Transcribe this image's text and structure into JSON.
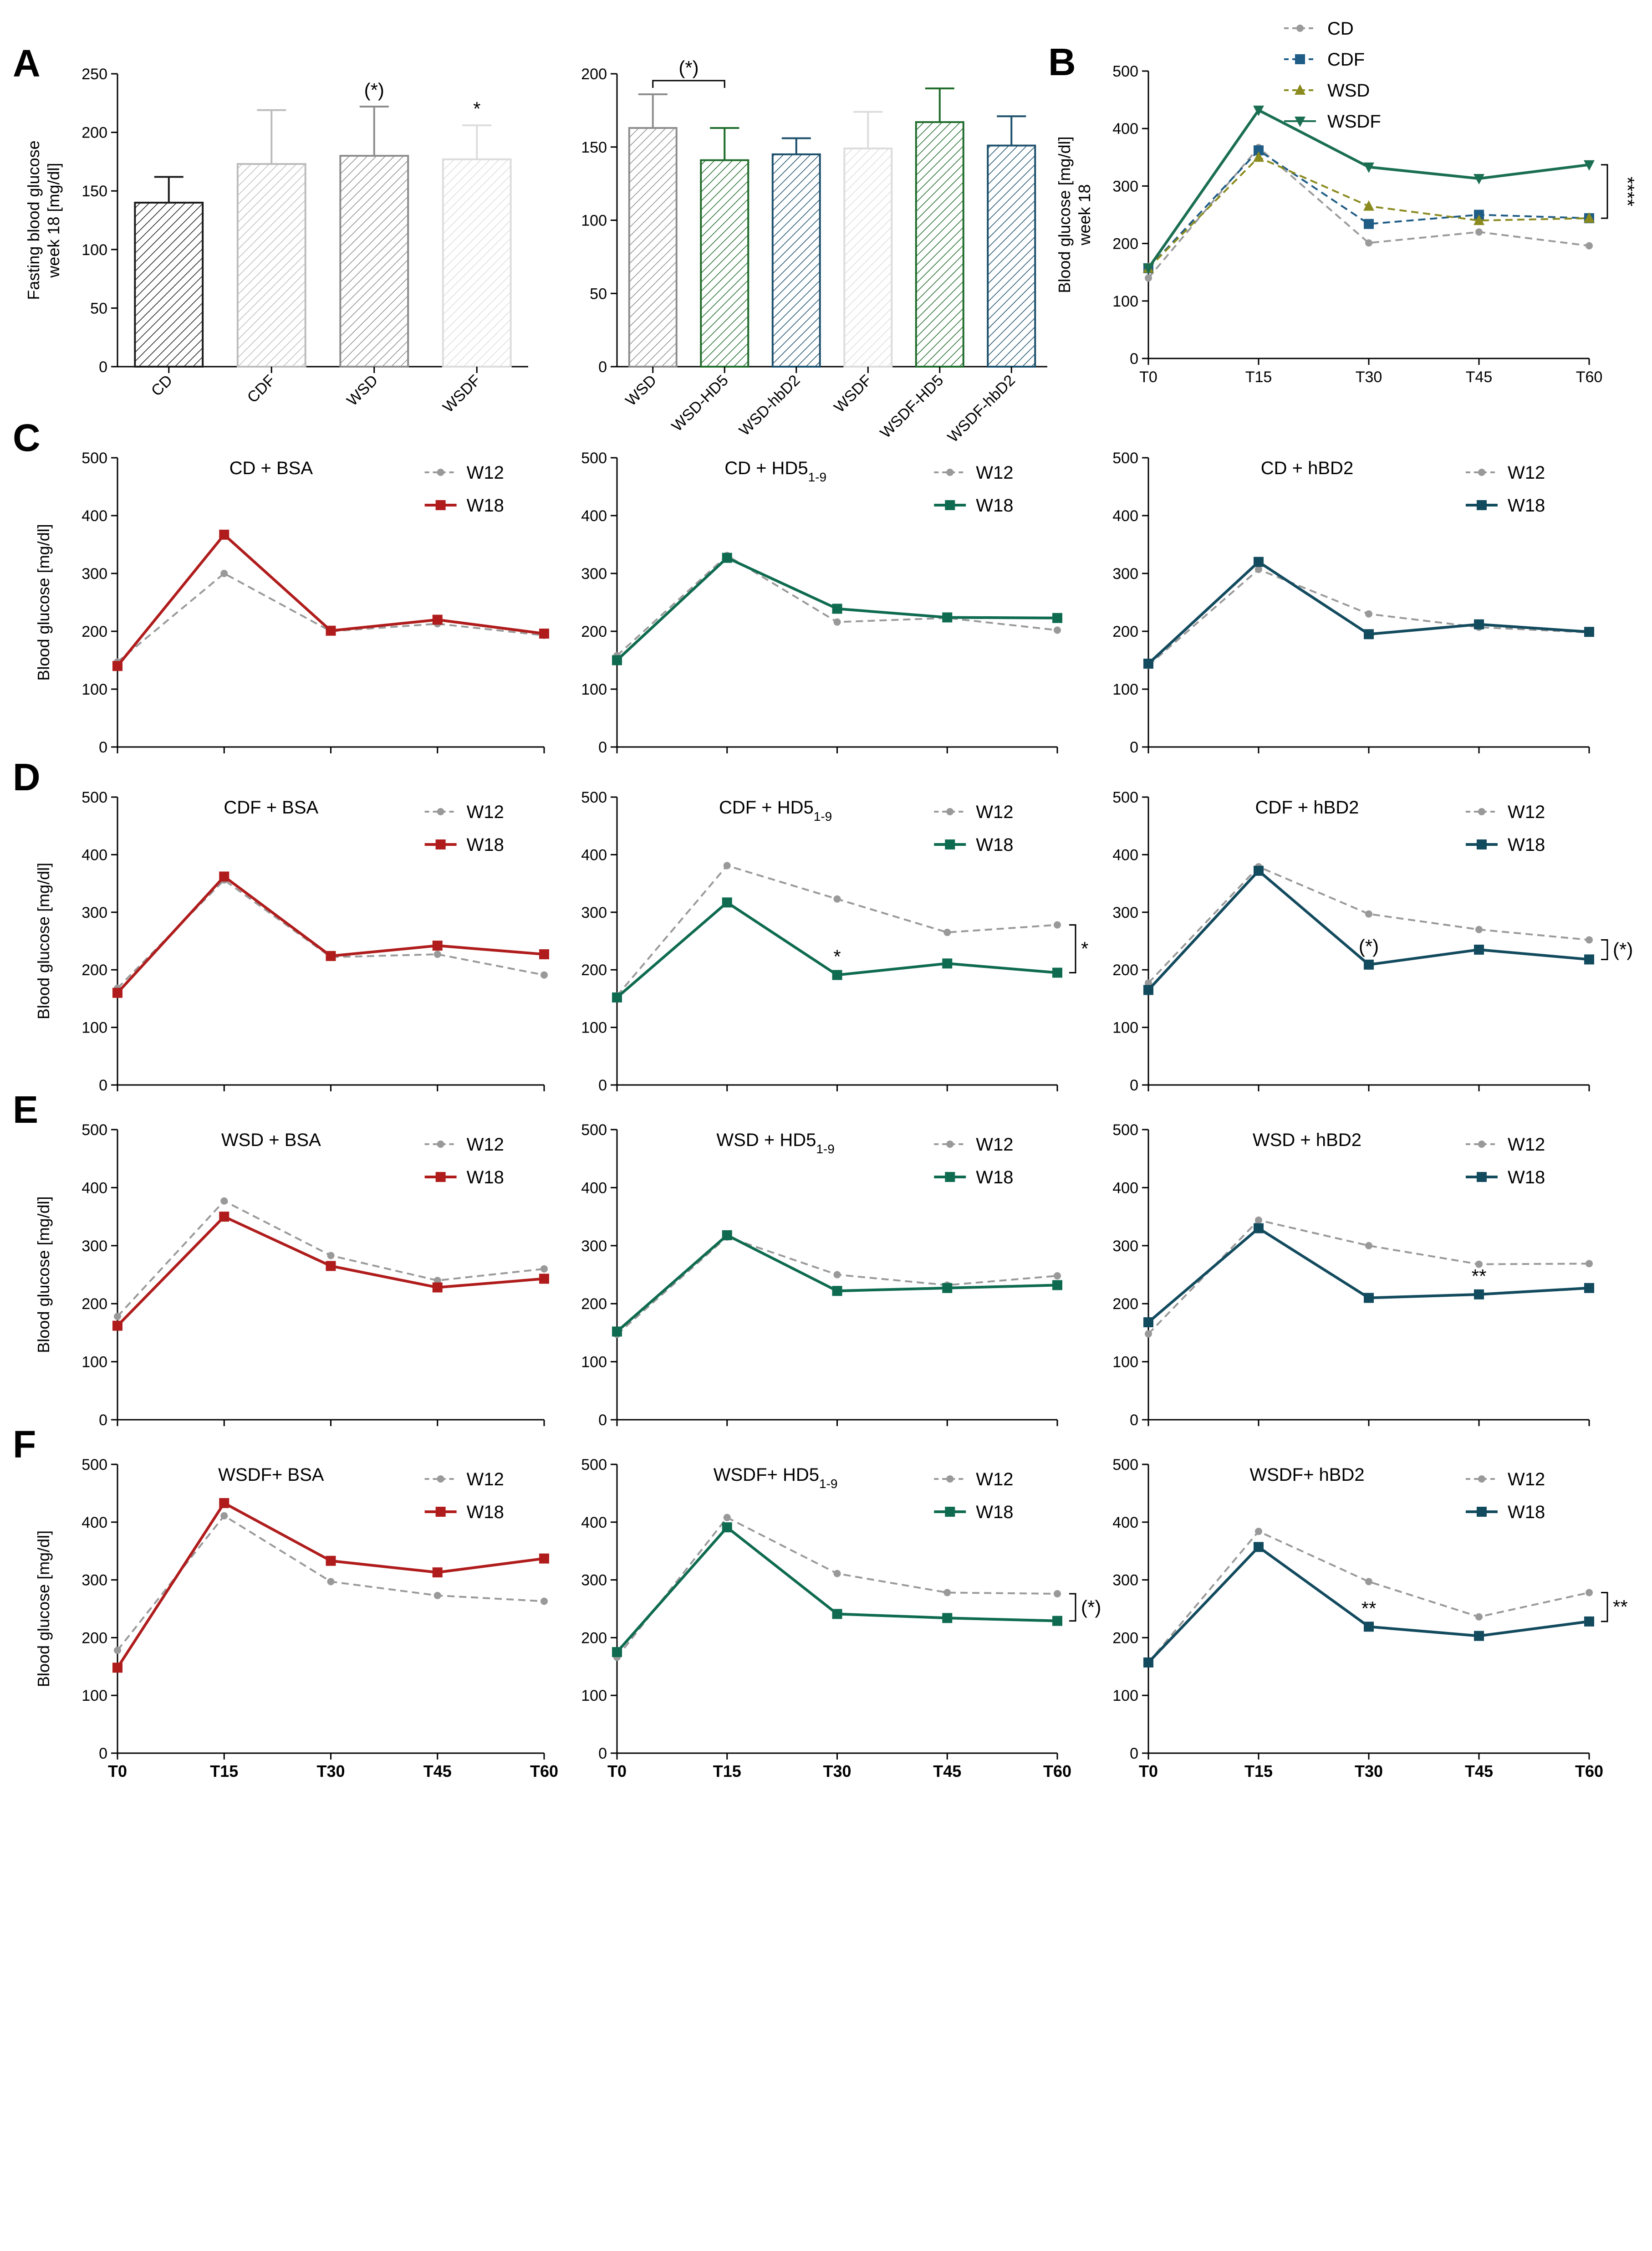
{
  "colors": {
    "CD": "#1a1a1a",
    "CDF": "#bcbcbc",
    "WSD": "#8c8c8c",
    "WSDF": "#dcdcdc",
    "HD5": "#1f6b2a",
    "hBD2": "#1b4f6b",
    "W12": "#999999",
    "W18_BSA": "#b01c1c",
    "W18_HD5": "#0e6b50",
    "W18_hBD2": "#124a5e",
    "B_CD": "#9a9a9a",
    "B_CDF": "#1f5c86",
    "B_WSD": "#8a8a1e",
    "B_WSDF": "#1a6e52"
  },
  "chart_data": [
    {
      "id": "A1",
      "type": "bar",
      "panel_label": "A",
      "ylabel_lines": [
        "Fasting blood glucose",
        "week 18 [mg/dl]"
      ],
      "ylim": [
        0,
        250
      ],
      "yticks": [
        0,
        50,
        100,
        150,
        200,
        250
      ],
      "categories": [
        "CD",
        "CDF",
        "WSD",
        "WSDF"
      ],
      "values": [
        140,
        173,
        180,
        177
      ],
      "errors": [
        22,
        46,
        42,
        29
      ],
      "bar_colors": [
        "CD",
        "CDF",
        "WSD",
        "WSDF"
      ],
      "annotations": [
        {
          "category": "WSD",
          "text": "(*)"
        },
        {
          "category": "WSDF",
          "text": "*"
        }
      ]
    },
    {
      "id": "A2",
      "type": "bar",
      "ylim": [
        0,
        200
      ],
      "yticks": [
        0,
        50,
        100,
        150,
        200
      ],
      "categories": [
        "WSD",
        "WSD-HD5",
        "WSD-hbD2",
        "WSDF",
        "WSDF-HD5",
        "WSDF-hbD2"
      ],
      "values": [
        163,
        141,
        145,
        149,
        167,
        151
      ],
      "errors": [
        23,
        22,
        11,
        25,
        23,
        20
      ],
      "bar_colors": [
        "WSD",
        "HD5",
        "hBD2",
        "WSDF",
        "HD5",
        "hBD2"
      ],
      "brackets": [
        {
          "from": "WSD",
          "to": "WSD-HD5",
          "text": "(*)"
        }
      ]
    },
    {
      "id": "B",
      "type": "line",
      "panel_label": "B",
      "ylabel_lines": [
        "Blood glucose [mg/dl]",
        "week 18"
      ],
      "ylim": [
        0,
        500
      ],
      "yticks": [
        0,
        100,
        200,
        300,
        400,
        500
      ],
      "x": [
        "T0",
        "T15",
        "T30",
        "T45",
        "T60"
      ],
      "series": [
        {
          "name": "CD",
          "values": [
            140,
            367,
            201,
            220,
            196
          ],
          "color": "B_CD",
          "dash": true,
          "marker": "circle"
        },
        {
          "name": "CDF",
          "values": [
            157,
            362,
            234,
            250,
            244
          ],
          "color": "B_CDF",
          "dash": true,
          "marker": "square"
        },
        {
          "name": "WSD",
          "values": [
            157,
            350,
            265,
            240,
            244
          ],
          "color": "B_WSD",
          "dash": true,
          "marker": "triangle"
        },
        {
          "name": "WSDF",
          "values": [
            157,
            432,
            333,
            313,
            337
          ],
          "color": "B_WSDF",
          "dash": false,
          "marker": "triangle-down"
        }
      ],
      "significance": {
        "text": "****",
        "from": 244,
        "to": 337
      }
    },
    {
      "id": "C1",
      "type": "line",
      "panel_label": "C",
      "title": "CD + BSA",
      "treatment": "BSA",
      "ylabel_lines": [
        "Blood glucose [mg/dl]"
      ],
      "ylim": [
        0,
        500
      ],
      "yticks": [
        0,
        100,
        200,
        300,
        400,
        500
      ],
      "x": [
        "T0",
        "T15",
        "T30",
        "T45",
        "T60"
      ],
      "series": [
        {
          "name": "W12",
          "values": [
            147,
            300,
            200,
            213,
            193
          ]
        },
        {
          "name": "W18",
          "values": [
            140,
            367,
            201,
            220,
            196
          ]
        }
      ]
    },
    {
      "id": "C2",
      "type": "line",
      "title_main": "CD + HD5",
      "title_sub": "1-9",
      "treatment": "HD5",
      "ylim": [
        0,
        500
      ],
      "yticks": [
        0,
        100,
        200,
        300,
        400,
        500
      ],
      "x": [
        "T0",
        "T15",
        "T30",
        "T45",
        "T60"
      ],
      "series": [
        {
          "name": "W12",
          "values": [
            158,
            331,
            216,
            223,
            202
          ]
        },
        {
          "name": "W18",
          "values": [
            150,
            327,
            239,
            224,
            223
          ]
        }
      ]
    },
    {
      "id": "C3",
      "type": "line",
      "title": "CD + hBD2",
      "treatment": "hBD2",
      "ylim": [
        0,
        500
      ],
      "yticks": [
        0,
        100,
        200,
        300,
        400,
        500
      ],
      "x": [
        "T0",
        "T15",
        "T30",
        "T45",
        "T60"
      ],
      "series": [
        {
          "name": "W12",
          "values": [
            141,
            307,
            230,
            207,
            198
          ]
        },
        {
          "name": "W18",
          "values": [
            144,
            320,
            195,
            212,
            199
          ]
        }
      ]
    },
    {
      "id": "D1",
      "type": "line",
      "panel_label": "D",
      "title": "CDF + BSA",
      "treatment": "BSA",
      "ylabel_lines": [
        "Blood glucose [mg/dl]"
      ],
      "ylim": [
        0,
        500
      ],
      "yticks": [
        0,
        100,
        200,
        300,
        400,
        500
      ],
      "x": [
        "T0",
        "T15",
        "T30",
        "T45",
        "T60"
      ],
      "series": [
        {
          "name": "W12",
          "values": [
            168,
            356,
            222,
            227,
            191
          ]
        },
        {
          "name": "W18",
          "values": [
            160,
            362,
            224,
            242,
            227
          ]
        }
      ]
    },
    {
      "id": "D2",
      "type": "line",
      "title_main": "CDF + HD5",
      "title_sub": "1-9",
      "treatment": "HD5",
      "ylim": [
        0,
        500
      ],
      "yticks": [
        0,
        100,
        200,
        300,
        400,
        500
      ],
      "x": [
        "T0",
        "T15",
        "T30",
        "T45",
        "T60"
      ],
      "series": [
        {
          "name": "W12",
          "values": [
            155,
            381,
            323,
            265,
            278
          ]
        },
        {
          "name": "W18",
          "values": [
            152,
            317,
            191,
            211,
            195
          ]
        }
      ],
      "point_annotations": [
        {
          "x": "T30",
          "value": 191,
          "text": "*"
        }
      ],
      "significance": {
        "text": "*",
        "from": 195,
        "to": 278
      }
    },
    {
      "id": "D3",
      "type": "line",
      "title": "CDF + hBD2",
      "treatment": "hBD2",
      "ylim": [
        0,
        500
      ],
      "yticks": [
        0,
        100,
        200,
        300,
        400,
        500
      ],
      "x": [
        "T0",
        "T15",
        "T30",
        "T45",
        "T60"
      ],
      "series": [
        {
          "name": "W12",
          "values": [
            177,
            379,
            297,
            270,
            252
          ]
        },
        {
          "name": "W18",
          "values": [
            165,
            372,
            209,
            235,
            218
          ]
        }
      ],
      "point_annotations": [
        {
          "x": "T30",
          "value": 209,
          "text": "(*)"
        }
      ],
      "significance": {
        "text": "(*)",
        "from": 218,
        "to": 252
      }
    },
    {
      "id": "E1",
      "type": "line",
      "panel_label": "E",
      "title": "WSD + BSA",
      "treatment": "BSA",
      "ylabel_lines": [
        "Blood glucose [mg/dl]"
      ],
      "ylim": [
        0,
        500
      ],
      "yticks": [
        0,
        100,
        200,
        300,
        400,
        500
      ],
      "x": [
        "T0",
        "T15",
        "T30",
        "T45",
        "T60"
      ],
      "series": [
        {
          "name": "W12",
          "values": [
            178,
            377,
            283,
            240,
            260
          ]
        },
        {
          "name": "W18",
          "values": [
            162,
            350,
            265,
            228,
            243
          ]
        }
      ]
    },
    {
      "id": "E2",
      "type": "line",
      "title_main": "WSD + HD5",
      "title_sub": "1-9",
      "treatment": "HD5",
      "ylim": [
        0,
        500
      ],
      "yticks": [
        0,
        100,
        200,
        300,
        400,
        500
      ],
      "x": [
        "T0",
        "T15",
        "T30",
        "T45",
        "T60"
      ],
      "series": [
        {
          "name": "W12",
          "values": [
            147,
            315,
            250,
            232,
            248
          ]
        },
        {
          "name": "W18",
          "values": [
            152,
            318,
            222,
            227,
            232
          ]
        }
      ]
    },
    {
      "id": "E3",
      "type": "line",
      "title": "WSD + hBD2",
      "treatment": "hBD2",
      "ylim": [
        0,
        500
      ],
      "yticks": [
        0,
        100,
        200,
        300,
        400,
        500
      ],
      "x": [
        "T0",
        "T15",
        "T30",
        "T45",
        "T60"
      ],
      "series": [
        {
          "name": "W12",
          "values": [
            148,
            344,
            300,
            268,
            269
          ]
        },
        {
          "name": "W18",
          "values": [
            168,
            330,
            210,
            216,
            227
          ]
        }
      ],
      "point_annotations": [
        {
          "x": "T45",
          "value": 216,
          "text": "**"
        }
      ]
    },
    {
      "id": "F1",
      "type": "line",
      "panel_label": "F",
      "title": "WSDF+ BSA",
      "treatment": "BSA",
      "ylabel_lines": [
        "Blood glucose [mg/dl]"
      ],
      "ylim": [
        0,
        500
      ],
      "yticks": [
        0,
        100,
        200,
        300,
        400,
        500
      ],
      "x": [
        "T0",
        "T15",
        "T30",
        "T45",
        "T60"
      ],
      "show_xticks": true,
      "series": [
        {
          "name": "W12",
          "values": [
            178,
            411,
            297,
            273,
            263
          ]
        },
        {
          "name": "W18",
          "values": [
            148,
            433,
            333,
            313,
            337
          ]
        }
      ]
    },
    {
      "id": "F2",
      "type": "line",
      "title_main": "WSDF+ HD5",
      "title_sub": "1-9",
      "treatment": "HD5",
      "ylim": [
        0,
        500
      ],
      "yticks": [
        0,
        100,
        200,
        300,
        400,
        500
      ],
      "x": [
        "T0",
        "T15",
        "T30",
        "T45",
        "T60"
      ],
      "show_xticks": true,
      "series": [
        {
          "name": "W12",
          "values": [
            166,
            408,
            311,
            278,
            276
          ]
        },
        {
          "name": "W18",
          "values": [
            175,
            391,
            241,
            234,
            229
          ]
        }
      ],
      "significance": {
        "text": "(*)",
        "from": 229,
        "to": 276
      }
    },
    {
      "id": "F3",
      "type": "line",
      "title": "WSDF+ hBD2",
      "treatment": "hBD2",
      "ylim": [
        0,
        500
      ],
      "yticks": [
        0,
        100,
        200,
        300,
        400,
        500
      ],
      "x": [
        "T0",
        "T15",
        "T30",
        "T45",
        "T60"
      ],
      "show_xticks": true,
      "series": [
        {
          "name": "W12",
          "values": [
            157,
            384,
            297,
            236,
            278
          ]
        },
        {
          "name": "W18",
          "values": [
            157,
            357,
            219,
            203,
            228
          ]
        }
      ],
      "point_annotations": [
        {
          "x": "T30",
          "value": 219,
          "text": "**"
        }
      ],
      "significance": {
        "text": "**",
        "from": 228,
        "to": 278
      }
    }
  ]
}
